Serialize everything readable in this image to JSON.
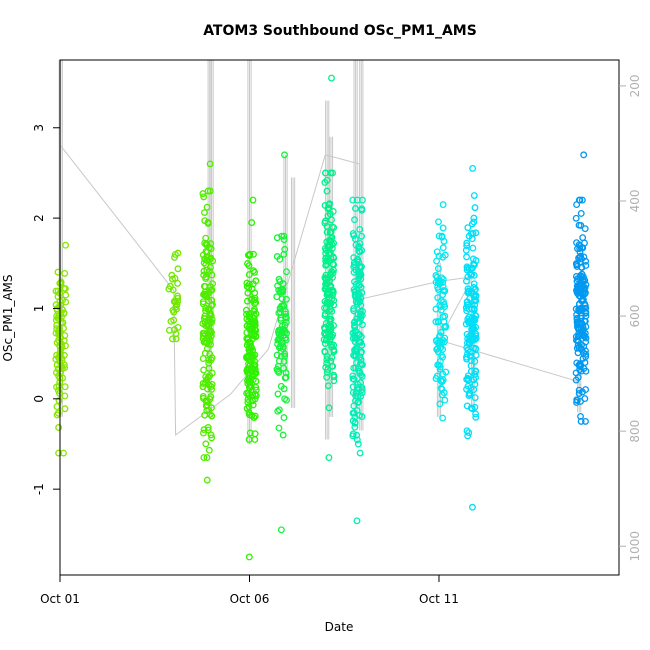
{
  "chart_data": {
    "type": "scatter",
    "title": "ATOM3 Southbound OSc_PM1_AMS",
    "xlabel": "Date",
    "ylabel": "OSc_PM1_AMS",
    "xlim": [
      0.0,
      14.75
    ],
    "ylim": [
      -1.95,
      3.75
    ],
    "right_axis": {
      "label": "",
      "ylim": [
        1050,
        155
      ],
      "ticks": [
        200,
        400,
        600,
        800,
        1000
      ],
      "color": "#b0b0b0",
      "reversed": true
    },
    "x_ticks": [
      0,
      5,
      10
    ],
    "x_tick_labels": [
      "Oct 01",
      "Oct 06",
      "Oct 11"
    ],
    "y_ticks": [
      -1,
      0,
      1,
      2,
      3
    ],
    "y_tick_labels": [
      "-1",
      "0",
      "1",
      "2",
      "3"
    ],
    "right_tick_labels": [
      "200",
      "400",
      "600",
      "800",
      "1000"
    ],
    "grid": false,
    "legend": "none",
    "series_groups": [
      {
        "x": 0.02,
        "color": "#88e600",
        "ymin": -0.6,
        "ymax": 1.7,
        "n": 90,
        "outliers": []
      },
      {
        "x": 3.0,
        "color": "#70e800",
        "ymin": 0.45,
        "ymax": 1.8,
        "n": 30,
        "outliers": []
      },
      {
        "x": 3.9,
        "color": "#50ec00",
        "ymin": -0.65,
        "ymax": 2.3,
        "n": 150,
        "outliers": [
          -0.9,
          2.6
        ]
      },
      {
        "x": 5.05,
        "color": "#2ef000",
        "ymin": -0.45,
        "ymax": 1.6,
        "n": 150,
        "outliers": [
          -1.75,
          1.95,
          2.2
        ]
      },
      {
        "x": 5.85,
        "color": "#18f23a",
        "ymin": -0.5,
        "ymax": 1.8,
        "n": 90,
        "outliers": [
          -1.45,
          2.7
        ]
      },
      {
        "x": 7.1,
        "color": "#00f08a",
        "ymin": -0.1,
        "ymax": 2.5,
        "n": 160,
        "outliers": [
          -0.65,
          3.55
        ]
      },
      {
        "x": 7.85,
        "color": "#00eeb4",
        "ymin": -0.5,
        "ymax": 2.2,
        "n": 160,
        "outliers": [
          -1.35,
          -0.6
        ]
      },
      {
        "x": 10.05,
        "color": "#00e8f0",
        "ymin": -0.3,
        "ymax": 2.15,
        "n": 90,
        "outliers": []
      },
      {
        "x": 10.85,
        "color": "#00def8",
        "ymin": -0.45,
        "ymax": 2.25,
        "n": 150,
        "outliers": [
          -1.2,
          2.55
        ]
      },
      {
        "x": 13.75,
        "color": "#0098f0",
        "ymin": -0.25,
        "ymax": 2.2,
        "n": 170,
        "outliers": [
          2.7
        ]
      }
    ],
    "track_line": {
      "color": "#c8c8c8",
      "points": [
        [
          0.02,
          2.8
        ],
        [
          3.0,
          1.2
        ],
        [
          3.05,
          -0.4
        ],
        [
          4.5,
          0.05
        ],
        [
          5.5,
          0.55
        ],
        [
          7.0,
          2.7
        ],
        [
          7.9,
          2.6
        ],
        [
          7.9,
          1.1
        ],
        [
          10.0,
          1.3
        ],
        [
          10.9,
          1.35
        ],
        [
          10.0,
          0.65
        ],
        [
          13.6,
          0.2
        ],
        [
          13.75,
          0.15
        ]
      ]
    },
    "spikes": [
      {
        "x": 0.02,
        "color": "#c8c8c8",
        "ylow": -0.2,
        "yhigh": 3.75
      },
      {
        "x": 3.95,
        "color": "#c8c8c8",
        "ylow": -0.2,
        "yhigh": 3.75
      },
      {
        "x": 4.0,
        "color": "#c8c8c8",
        "ylow": 0.6,
        "yhigh": 3.75
      },
      {
        "x": 5.0,
        "color": "#c8c8c8",
        "ylow": -0.5,
        "yhigh": 3.75
      },
      {
        "x": 5.95,
        "color": "#c8c8c8",
        "ylow": 0.25,
        "yhigh": 2.7
      },
      {
        "x": 6.15,
        "color": "#c8c8c8",
        "ylow": -0.1,
        "yhigh": 2.45
      },
      {
        "x": 7.05,
        "color": "#c8c8c8",
        "ylow": -0.45,
        "yhigh": 3.3
      },
      {
        "x": 7.15,
        "color": "#c8c8c8",
        "ylow": -0.2,
        "yhigh": 2.9
      },
      {
        "x": 7.8,
        "color": "#c8c8c8",
        "ylow": -0.2,
        "yhigh": 3.75
      },
      {
        "x": 7.95,
        "color": "#c8c8c8",
        "ylow": -0.35,
        "yhigh": 3.75
      },
      {
        "x": 10.0,
        "color": "#c8c8c8",
        "ylow": -0.2,
        "yhigh": 1.5
      },
      {
        "x": 10.9,
        "color": "#c8c8c8",
        "ylow": -0.1,
        "yhigh": 1.2
      },
      {
        "x": 13.7,
        "color": "#c8c8c8",
        "ylow": -0.15,
        "yhigh": 0.4
      }
    ]
  }
}
